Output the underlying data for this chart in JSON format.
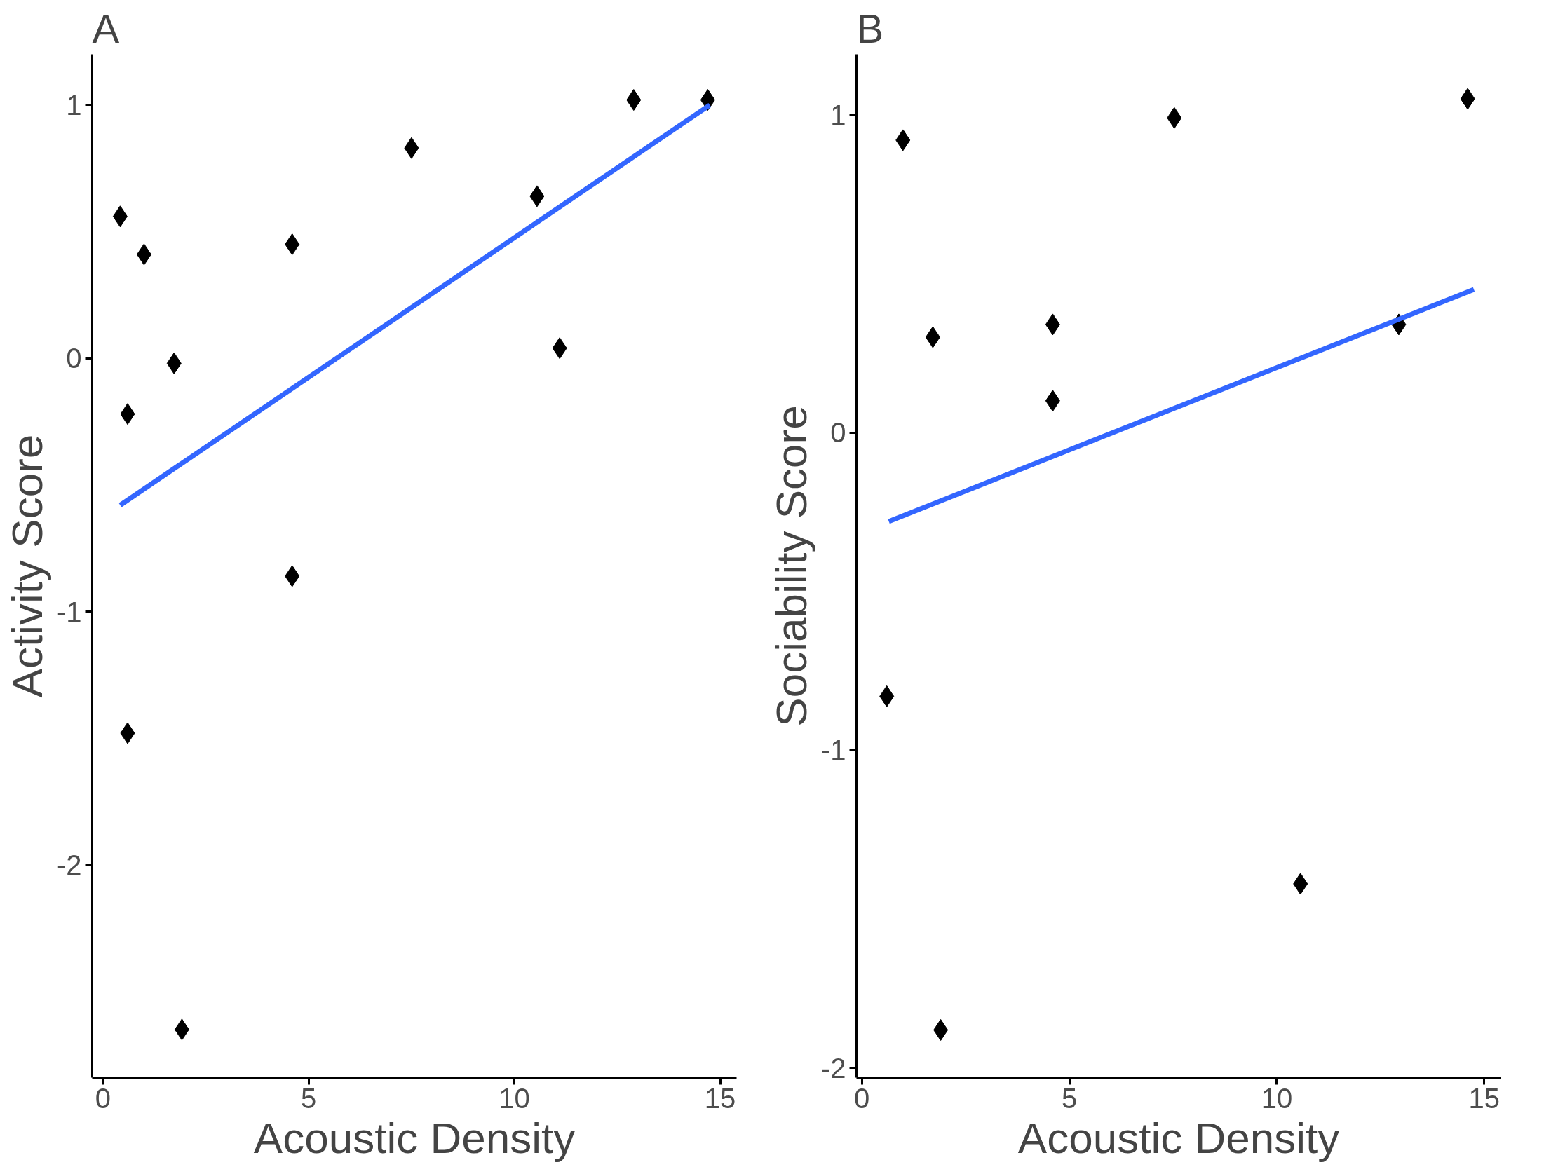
{
  "chart_data": [
    {
      "type": "scatter",
      "title": "A",
      "xlabel": "Acoustic Density",
      "ylabel": "Activity Score",
      "xlim": [
        -0.26,
        15.4
      ],
      "ylim": [
        -2.84,
        1.2
      ],
      "xticks": [
        0,
        5,
        10,
        15
      ],
      "yticks": [
        -2,
        -1,
        0,
        1
      ],
      "grid": false,
      "series": [
        {
          "marker": "diamond",
          "color": "#000000",
          "x": [
            0.42,
            1.0,
            0.6,
            1.73,
            0.6,
            1.92,
            4.6,
            4.6,
            7.5,
            10.55,
            11.1,
            12.9,
            14.7
          ],
          "values": [
            0.56,
            0.41,
            -0.22,
            -0.02,
            -1.48,
            -2.65,
            0.45,
            -0.86,
            0.83,
            0.64,
            0.04,
            1.02,
            1.02
          ]
        },
        {
          "type": "line",
          "color": "#3366ff",
          "x": [
            0.42,
            14.75
          ],
          "values": [
            -0.58,
            1.0
          ]
        }
      ]
    },
    {
      "type": "scatter",
      "title": "B",
      "xlabel": "Acoustic Density",
      "ylabel": "Sociability Score",
      "xlim": [
        -0.13,
        15.4
      ],
      "ylim": [
        -2.03,
        1.19
      ],
      "xticks": [
        0,
        5,
        10,
        15
      ],
      "yticks": [
        -2,
        -1,
        0,
        1
      ],
      "grid": false,
      "series": [
        {
          "marker": "diamond",
          "color": "#000000",
          "x": [
            0.6,
            0.99,
            1.71,
            1.9,
            4.6,
            4.6,
            7.53,
            10.57,
            12.94,
            14.6
          ],
          "values": [
            -0.83,
            0.92,
            0.3,
            -1.88,
            0.34,
            0.1,
            0.99,
            -1.42,
            0.34,
            1.05
          ]
        },
        {
          "type": "line",
          "color": "#3366ff",
          "x": [
            0.65,
            14.75
          ],
          "values": [
            -0.28,
            0.45
          ]
        }
      ]
    }
  ]
}
